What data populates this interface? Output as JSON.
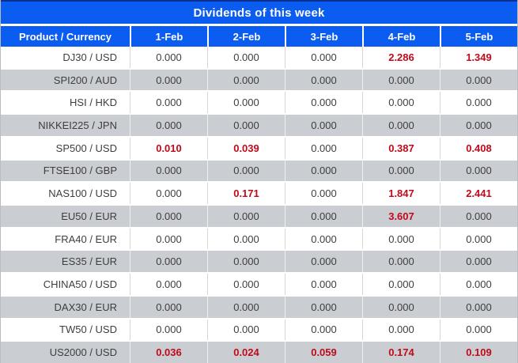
{
  "title": "Dividends of this week",
  "columns": [
    "Product / Currency",
    "1-Feb",
    "2-Feb",
    "3-Feb",
    "4-Feb",
    "5-Feb"
  ],
  "rows": [
    {
      "product": "DJ30 / USD",
      "values": [
        "0.000",
        "0.000",
        "0.000",
        "2.286",
        "1.349"
      ]
    },
    {
      "product": "SPI200 / AUD",
      "values": [
        "0.000",
        "0.000",
        "0.000",
        "0.000",
        "0.000"
      ]
    },
    {
      "product": "HSI / HKD",
      "values": [
        "0.000",
        "0.000",
        "0.000",
        "0.000",
        "0.000"
      ]
    },
    {
      "product": "NIKKEI225 / JPN",
      "values": [
        "0.000",
        "0.000",
        "0.000",
        "0.000",
        "0.000"
      ]
    },
    {
      "product": "SP500 / USD",
      "values": [
        "0.010",
        "0.039",
        "0.000",
        "0.387",
        "0.408"
      ]
    },
    {
      "product": "FTSE100 / GBP",
      "values": [
        "0.000",
        "0.000",
        "0.000",
        "0.000",
        "0.000"
      ]
    },
    {
      "product": "NAS100 / USD",
      "values": [
        "0.000",
        "0.171",
        "0.000",
        "1.847",
        "2.441"
      ]
    },
    {
      "product": "EU50 / EUR",
      "values": [
        "0.000",
        "0.000",
        "0.000",
        "3.607",
        "0.000"
      ]
    },
    {
      "product": "FRA40 / EUR",
      "values": [
        "0.000",
        "0.000",
        "0.000",
        "0.000",
        "0.000"
      ]
    },
    {
      "product": "ES35 / EUR",
      "values": [
        "0.000",
        "0.000",
        "0.000",
        "0.000",
        "0.000"
      ]
    },
    {
      "product": "CHINA50 / USD",
      "values": [
        "0.000",
        "0.000",
        "0.000",
        "0.000",
        "0.000"
      ]
    },
    {
      "product": "DAX30 / EUR",
      "values": [
        "0.000",
        "0.000",
        "0.000",
        "0.000",
        "0.000"
      ]
    },
    {
      "product": "TW50 / USD",
      "values": [
        "0.000",
        "0.000",
        "0.000",
        "0.000",
        "0.000"
      ]
    },
    {
      "product": "US2000 / USD",
      "values": [
        "0.036",
        "0.024",
        "0.059",
        "0.174",
        "0.109"
      ]
    }
  ],
  "colors": {
    "header_blue": "#0b5cf0",
    "header_top_border": "#0a2f91",
    "row_gray": "#cacdd2",
    "highlight_red": "#c00a1a",
    "text_dark": "#3e3e3e"
  }
}
